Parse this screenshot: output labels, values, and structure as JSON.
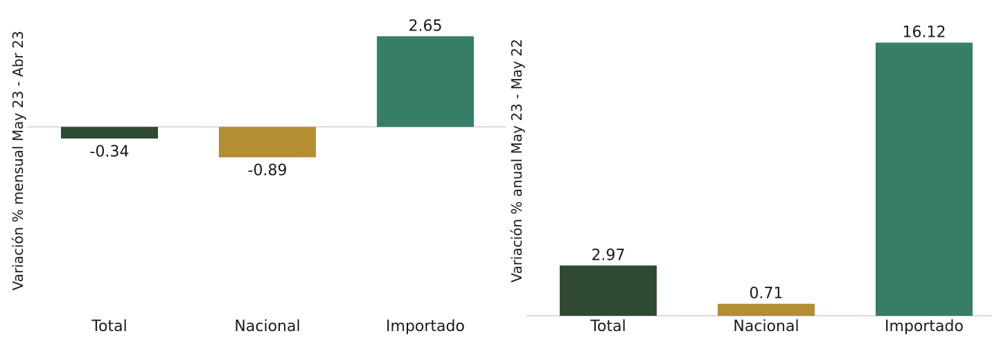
{
  "colors": {
    "total": "#2e4a32",
    "nacional": "#b38e32",
    "importado": "#367e68",
    "axis": "#cfcfcf",
    "text": "#1a1a1a"
  },
  "chart_data": [
    {
      "type": "bar",
      "ylabel": "Variación % mensual May 23 - Abr 23",
      "categories": [
        "Total",
        "Nacional",
        "Importado"
      ],
      "values": [
        -0.34,
        -0.89,
        2.65
      ],
      "value_labels": [
        "-0.34",
        "-0.89",
        "2.65"
      ],
      "ylim": [
        -5.1,
        2.9
      ],
      "grid": false
    },
    {
      "type": "bar",
      "ylabel": "Variación % anual May 23 - May 22",
      "categories": [
        "Total",
        "Nacional",
        "Importado"
      ],
      "values": [
        2.97,
        0.71,
        16.12
      ],
      "value_labels": [
        "2.97",
        "0.71",
        "16.12"
      ],
      "ylim": [
        0,
        17
      ],
      "grid": false
    }
  ]
}
